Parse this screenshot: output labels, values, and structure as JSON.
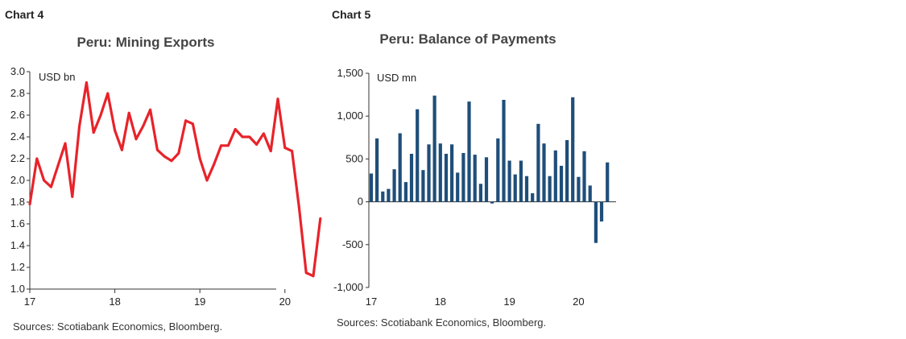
{
  "chart_data": [
    {
      "type": "line",
      "chart_label": "Chart 4",
      "title": "Peru: Mining Exports",
      "unit_label": "USD bn",
      "ylim": [
        1.0,
        3.0
      ],
      "yticks": [
        "1.0",
        "1.2",
        "1.4",
        "1.6",
        "1.8",
        "2.0",
        "2.2",
        "2.4",
        "2.6",
        "2.8",
        "3.0"
      ],
      "xticks": [
        "17",
        "18",
        "19",
        "20"
      ],
      "grid": false,
      "legend": "none",
      "color": "#e8232a",
      "start": "2017-01",
      "x": [
        "2017-01",
        "2017-02",
        "2017-03",
        "2017-04",
        "2017-05",
        "2017-06",
        "2017-07",
        "2017-08",
        "2017-09",
        "2017-10",
        "2017-11",
        "2017-12",
        "2018-01",
        "2018-02",
        "2018-03",
        "2018-04",
        "2018-05",
        "2018-06",
        "2018-07",
        "2018-08",
        "2018-09",
        "2018-10",
        "2018-11",
        "2018-12",
        "2019-01",
        "2019-02",
        "2019-03",
        "2019-04",
        "2019-05",
        "2019-06",
        "2019-07",
        "2019-08",
        "2019-09",
        "2019-10",
        "2019-11",
        "2019-12",
        "2020-01",
        "2020-02",
        "2020-03",
        "2020-04",
        "2020-05",
        "2020-06"
      ],
      "values": [
        1.78,
        2.2,
        2.0,
        1.94,
        2.14,
        2.34,
        1.85,
        2.5,
        2.9,
        2.44,
        2.6,
        2.8,
        2.46,
        2.28,
        2.62,
        2.38,
        2.5,
        2.65,
        2.28,
        2.22,
        2.18,
        2.25,
        2.55,
        2.52,
        2.2,
        2.0,
        2.15,
        2.32,
        2.32,
        2.47,
        2.4,
        2.4,
        2.33,
        2.43,
        2.27,
        2.75,
        2.3,
        2.27,
        1.75,
        1.15,
        1.12,
        1.65
      ],
      "source": "Sources: Scotiabank Economics, Bloomberg."
    },
    {
      "type": "bar",
      "chart_label": "Chart 5",
      "title": "Peru: Balance of Payments",
      "unit_label": "USD mn",
      "ylim": [
        -1000,
        1500
      ],
      "yticks": [
        "-1,000",
        "-500",
        "0",
        "500",
        "1,000",
        "1,500"
      ],
      "xticks": [
        "17",
        "18",
        "19",
        "20"
      ],
      "grid": false,
      "legend": "none",
      "color": "#1f4e79",
      "start": "2017-01",
      "x": [
        "2017-01",
        "2017-02",
        "2017-03",
        "2017-04",
        "2017-05",
        "2017-06",
        "2017-07",
        "2017-08",
        "2017-09",
        "2017-10",
        "2017-11",
        "2017-12",
        "2018-01",
        "2018-02",
        "2018-03",
        "2018-04",
        "2018-05",
        "2018-06",
        "2018-07",
        "2018-08",
        "2018-09",
        "2018-10",
        "2018-11",
        "2018-12",
        "2019-01",
        "2019-02",
        "2019-03",
        "2019-04",
        "2019-05",
        "2019-06",
        "2019-07",
        "2019-08",
        "2019-09",
        "2019-10",
        "2019-11",
        "2019-12",
        "2020-01",
        "2020-02",
        "2020-03",
        "2020-04",
        "2020-05",
        "2020-06"
      ],
      "values": [
        330,
        740,
        120,
        150,
        380,
        800,
        230,
        560,
        1080,
        370,
        670,
        1240,
        680,
        560,
        670,
        340,
        570,
        1170,
        550,
        210,
        520,
        -20,
        740,
        1190,
        480,
        320,
        480,
        300,
        100,
        910,
        680,
        300,
        600,
        420,
        720,
        1220,
        290,
        590,
        190,
        -480,
        -230,
        460
      ],
      "source": "Sources: Scotiabank Economics, Bloomberg."
    }
  ]
}
